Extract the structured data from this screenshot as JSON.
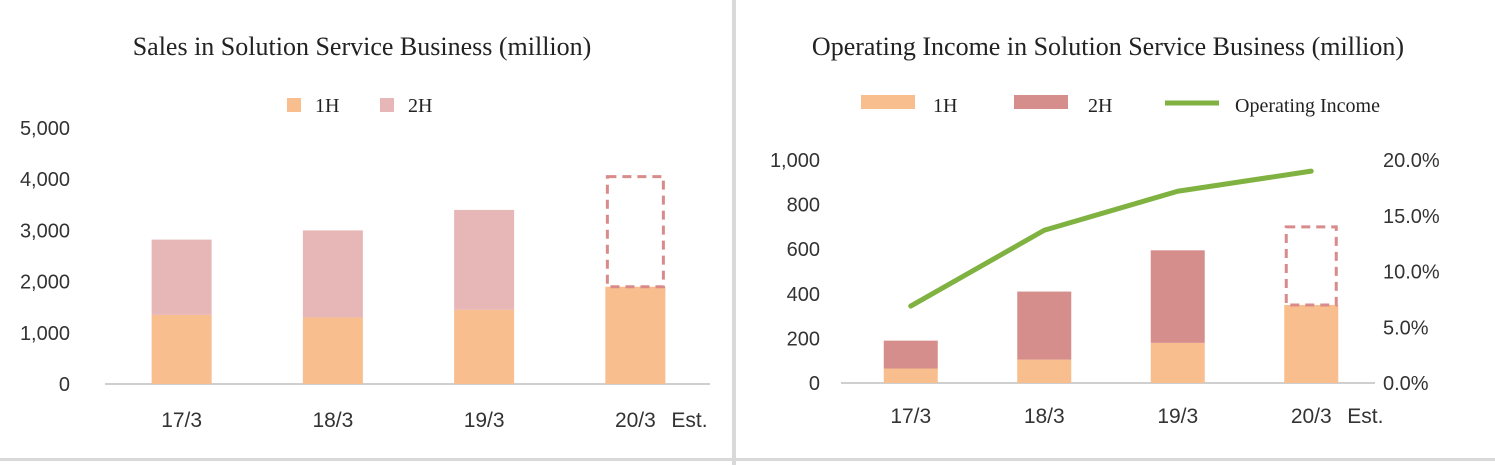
{
  "chart_data": [
    {
      "type": "bar",
      "title": "Sales in Solution Service Business (million)",
      "categories": [
        "17/3",
        "18/3",
        "19/3",
        "20/3"
      ],
      "category_suffix": "Est.",
      "series": [
        {
          "name": "1H",
          "values": [
            1350,
            1300,
            1450,
            1900
          ]
        },
        {
          "name": "2H",
          "values": [
            1470,
            1700,
            1950,
            2150
          ]
        }
      ],
      "estimated_category": "20/3",
      "ylim": [
        0,
        5000
      ],
      "yticks": [
        "0",
        "1,000",
        "2,000",
        "3,000",
        "4,000",
        "5,000"
      ],
      "stacked": true,
      "legend": "top",
      "colors": {
        "1H": "#f8be8e",
        "2H": "#e6b7b6",
        "estimate_outline": "#d98a8a"
      }
    },
    {
      "type": "bar",
      "title": "Operating Income in Solution Service Business (million)",
      "categories": [
        "17/3",
        "18/3",
        "19/3",
        "20/3"
      ],
      "category_suffix": "Est.",
      "series": [
        {
          "name": "1H",
          "values": [
            65,
            105,
            180,
            350
          ]
        },
        {
          "name": "2H",
          "values": [
            125,
            305,
            415,
            350
          ]
        },
        {
          "name": "Operating Income",
          "type": "line",
          "axis": "right",
          "values": [
            6.9,
            13.7,
            17.2,
            19.0
          ]
        }
      ],
      "estimated_category": "20/3",
      "ylim": [
        0,
        1000
      ],
      "yticks": [
        "0",
        "200",
        "400",
        "600",
        "800",
        "1,000"
      ],
      "y2lim": [
        0,
        20
      ],
      "y2ticks": [
        "0.0%",
        "5.0%",
        "10.0%",
        "15.0%",
        "20.0%"
      ],
      "stacked": true,
      "legend": "top",
      "colors": {
        "1H": "#f8be8e",
        "2H": "#d58e8b",
        "Operating Income": "#7fb241",
        "estimate_outline": "#d98a8a"
      }
    }
  ]
}
